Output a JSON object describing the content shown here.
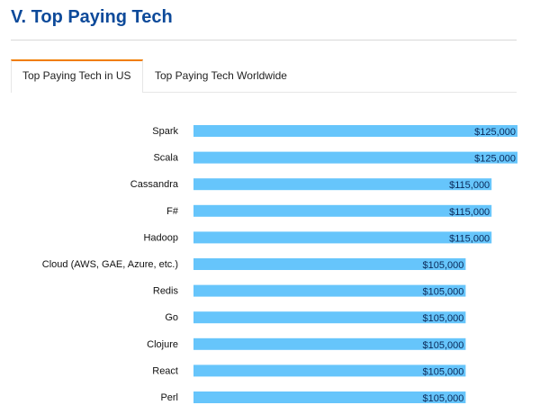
{
  "header": {
    "title": "V. Top Paying Tech"
  },
  "tabs": [
    {
      "label": "Top Paying Tech in US",
      "active": true
    },
    {
      "label": "Top Paying Tech Worldwide",
      "active": false
    }
  ],
  "chart_data": {
    "type": "bar",
    "orientation": "horizontal",
    "categories": [
      "Spark",
      "Scala",
      "Cassandra",
      "F#",
      "Hadoop",
      "Cloud (AWS, GAE, Azure, etc.)",
      "Redis",
      "Go",
      "Clojure",
      "React",
      "Perl"
    ],
    "values": [
      125000,
      125000,
      115000,
      115000,
      115000,
      105000,
      105000,
      105000,
      105000,
      105000,
      105000
    ],
    "value_labels": [
      "$125,000",
      "$125,000",
      "$115,000",
      "$115,000",
      "$115,000",
      "$105,000",
      "$105,000",
      "$105,000",
      "$105,000",
      "$105,000",
      "$105,000"
    ],
    "bar_color": "#66c5fb",
    "title": "",
    "xlabel": "",
    "ylabel": "",
    "xlim": [
      0,
      125000
    ]
  }
}
